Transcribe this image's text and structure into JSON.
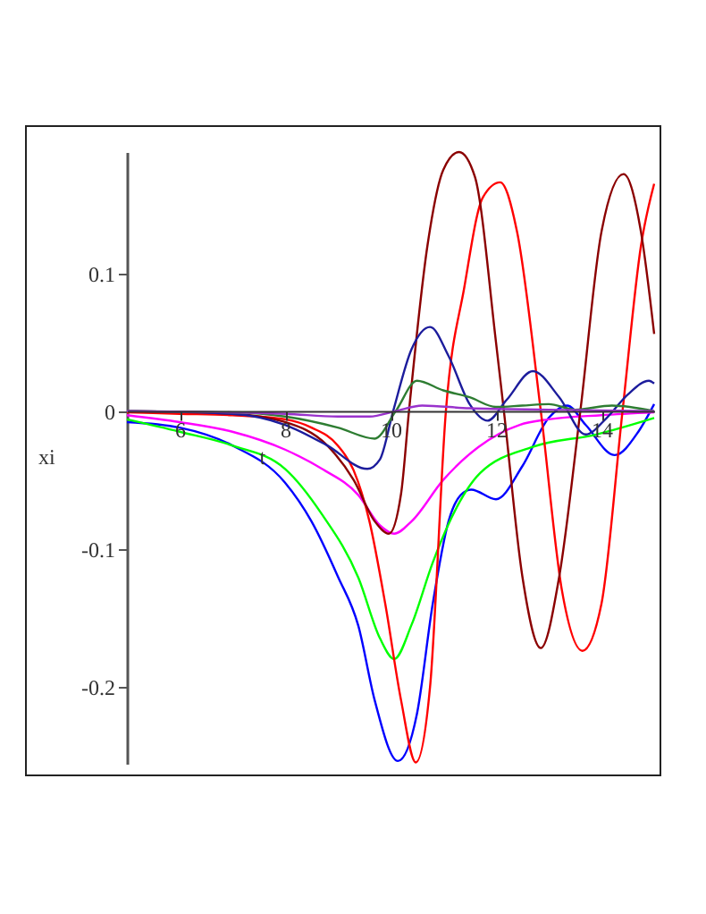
{
  "chart_data": {
    "type": "line",
    "xlabel": "t",
    "ylabel": "xi",
    "xlim": [
      5,
      15
    ],
    "ylim": [
      -0.256,
      0.188
    ],
    "xticks": [
      6,
      8,
      10,
      12,
      14
    ],
    "yticks": [
      -0.2,
      -0.1,
      0,
      0.1
    ],
    "grid": false,
    "marker": "none",
    "line_style": "solid",
    "series": [
      {
        "color": "#0000ff",
        "x": [
          5,
          6,
          7,
          8,
          8.5,
          9,
          9.39,
          9.7,
          10.14,
          10.5,
          10.8,
          11.1,
          11.33,
          11.53,
          12,
          12.5,
          13,
          13.35,
          13.7,
          14.25,
          14.7,
          15
        ],
        "values": [
          -0.008,
          -0.012,
          -0.025,
          -0.052,
          -0.08,
          -0.12,
          -0.156,
          -0.21,
          -0.254,
          -0.22,
          -0.14,
          -0.08,
          -0.061,
          -0.057,
          -0.064,
          -0.04,
          -0.005,
          0.004,
          -0.01,
          -0.032,
          -0.015,
          0.005
        ]
      },
      {
        "color": "#00ff00",
        "x": [
          5,
          6,
          7,
          8,
          8.7,
          9.39,
          9.8,
          10.07,
          10.4,
          10.8,
          11.1,
          11.7,
          12.7,
          13.9,
          15
        ],
        "values": [
          -0.006,
          -0.015,
          -0.025,
          -0.042,
          -0.075,
          -0.121,
          -0.165,
          -0.18,
          -0.155,
          -0.11,
          -0.082,
          -0.045,
          -0.026,
          -0.017,
          -0.005
        ]
      },
      {
        "color": "#ff00ff",
        "x": [
          5,
          6,
          7,
          8,
          8.7,
          9.39,
          9.8,
          10.07,
          10.4,
          11,
          11.67,
          12.45,
          13,
          14,
          15
        ],
        "values": [
          -0.003,
          -0.008,
          -0.015,
          -0.028,
          -0.042,
          -0.061,
          -0.083,
          -0.089,
          -0.08,
          -0.05,
          -0.026,
          -0.01,
          -0.006,
          -0.003,
          -0.001
        ]
      },
      {
        "color": "#ff0000",
        "x": [
          5,
          6,
          7,
          8,
          8.5,
          9,
          9.3,
          9.6,
          9.9,
          10.2,
          10.48,
          10.75,
          11.05,
          11.4,
          11.75,
          12.08,
          12.4,
          12.85,
          13.25,
          13.64,
          14,
          14.4,
          14.75,
          15
        ],
        "values": [
          -0.001,
          -0.002,
          -0.003,
          -0.006,
          -0.012,
          -0.025,
          -0.043,
          -0.08,
          -0.14,
          -0.21,
          -0.255,
          -0.2,
          0,
          0.09,
          0.155,
          0.166,
          0.13,
          0,
          -0.13,
          -0.174,
          -0.14,
          0,
          0.12,
          0.165
        ]
      },
      {
        "color": "#8b0000",
        "x": [
          5,
          7,
          8,
          8.8,
          9.3,
          9.7,
          9.97,
          10.2,
          10.35,
          10.7,
          11,
          11.3,
          11.6,
          12,
          12.15,
          12.5,
          12.85,
          13.2,
          13.6,
          14,
          14.42,
          14.75,
          15
        ],
        "values": [
          0,
          -0.002,
          -0.008,
          -0.025,
          -0.05,
          -0.08,
          -0.089,
          -0.06,
          0,
          0.12,
          0.175,
          0.188,
          0.17,
          0.05,
          0,
          -0.12,
          -0.172,
          -0.12,
          0,
          0.13,
          0.172,
          0.13,
          0.056
        ]
      },
      {
        "color": "#1c1c9c",
        "x": [
          5,
          7,
          8,
          8.8,
          9.56,
          9.8,
          10.05,
          10.4,
          10.75,
          11.1,
          11.5,
          11.84,
          12.2,
          12.7,
          13.2,
          13.7,
          14.1,
          14.5,
          14.9,
          15
        ],
        "values": [
          0,
          -0.002,
          -0.01,
          -0.025,
          -0.042,
          -0.035,
          0,
          0.045,
          0.061,
          0.04,
          0.005,
          -0.007,
          0.008,
          0.029,
          0.01,
          -0.017,
          -0.005,
          0.012,
          0.022,
          0.02
        ]
      },
      {
        "color": "#2e7d32",
        "x": [
          5,
          7,
          8,
          9,
          9.7,
          10.1,
          10.5,
          11,
          11.5,
          12,
          12.5,
          13,
          13.5,
          14.2,
          15
        ],
        "values": [
          0,
          -0.001,
          -0.004,
          -0.012,
          -0.02,
          0,
          0.022,
          0.015,
          0.01,
          0.003,
          0.004,
          0.005,
          0.001,
          0.004,
          0
        ]
      },
      {
        "color": "#9932cc",
        "x": [
          5,
          8,
          9,
          9.6,
          10.1,
          10.6,
          11.5,
          13,
          15
        ],
        "values": [
          0,
          -0.002,
          -0.004,
          -0.004,
          0,
          0.004,
          0.002,
          0.001,
          0
        ]
      }
    ]
  }
}
